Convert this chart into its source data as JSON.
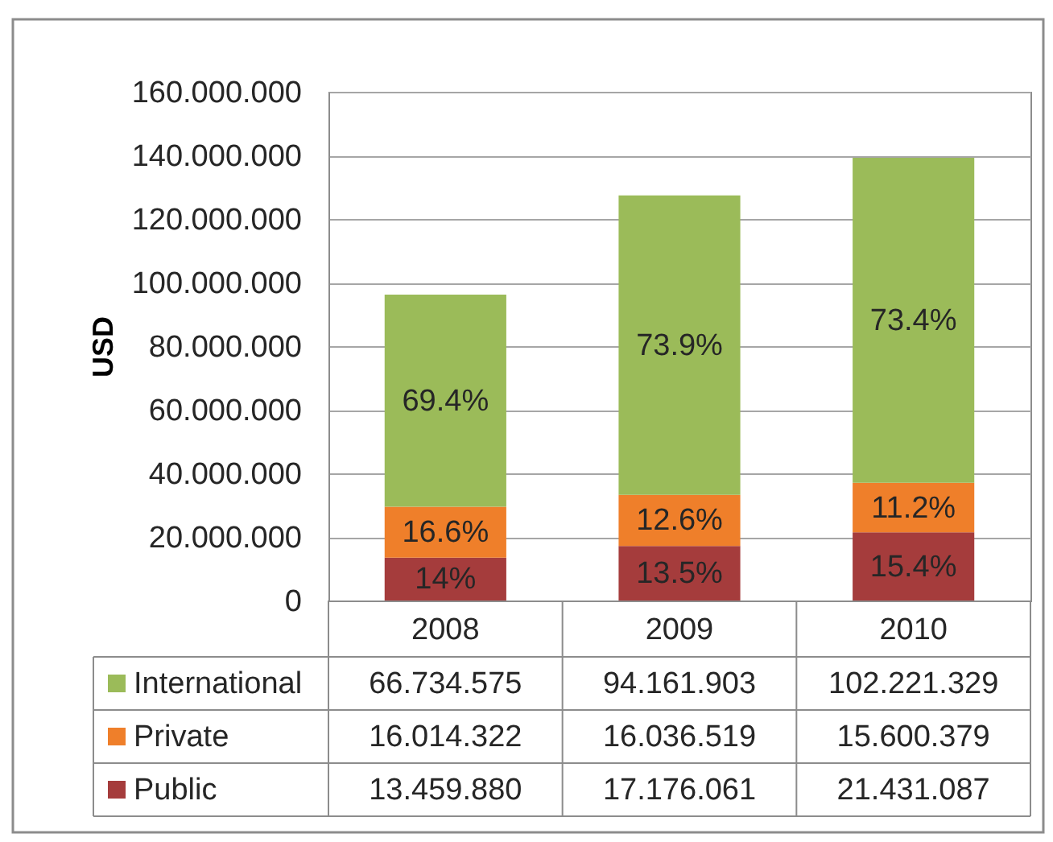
{
  "chart_data": {
    "type": "bar",
    "stacked": true,
    "ylabel": "USD",
    "categories": [
      "2008",
      "2009",
      "2010"
    ],
    "series": [
      {
        "name": "Public",
        "color": "#a53c3c",
        "values": [
          13459880,
          17176061,
          21431087
        ],
        "value_labels": [
          "13.459.880",
          "17.176.061",
          "21.431.087"
        ]
      },
      {
        "name": "Private",
        "color": "#ef7f2a",
        "values": [
          16014322,
          16036519,
          15600379
        ],
        "value_labels": [
          "16.014.322",
          "16.036.519",
          "15.600.379"
        ]
      },
      {
        "name": "International",
        "color": "#9bbb59",
        "values": [
          66734575,
          94161903,
          102221329
        ],
        "value_labels": [
          "66.734.575",
          "94.161.903",
          "102.221.329"
        ]
      }
    ],
    "annotations": [
      "14%",
      "13.5%",
      "15.4%",
      "16.6%",
      "12.6%",
      "11.2%",
      "69.4%",
      "73.9%",
      "73.4%"
    ],
    "ylim": [
      0,
      160000000
    ],
    "yticks": [
      0,
      {
        "value": 20000000,
        "label": "20.000.000"
      },
      {
        "value": 40000000,
        "label": "40.000.000"
      },
      {
        "value": 60000000,
        "label": "60.000.000"
      },
      {
        "value": 80000000,
        "label": "80.000.000"
      },
      {
        "value": 100000000,
        "label": "100.000.000"
      },
      {
        "value": 120000000,
        "label": "120.000.000"
      },
      {
        "value": 140000000,
        "label": "140.000.000"
      },
      {
        "value": 160000000,
        "label": "160.000.000"
      }
    ],
    "grid": "y",
    "legend": "bottom"
  }
}
